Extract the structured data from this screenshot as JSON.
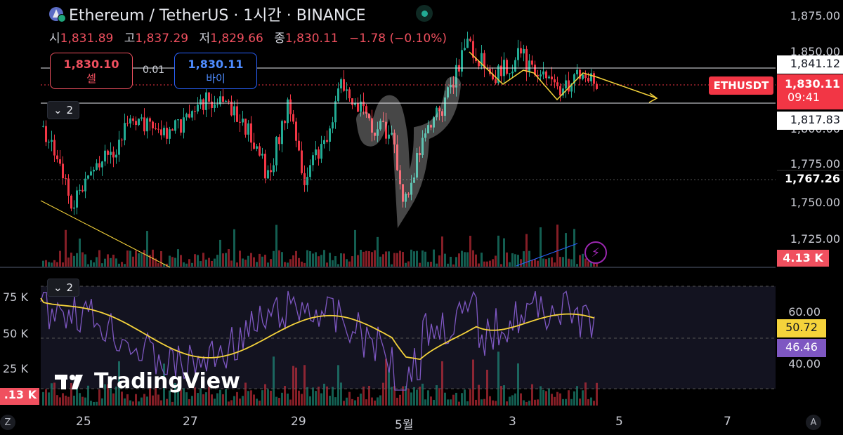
{
  "header": {
    "title": "Ethereum / TetherUS · 1시간 · BINANCE",
    "ohlc": [
      {
        "k": "시",
        "v": "1,831.89"
      },
      {
        "k": "고",
        "v": "1,837.29"
      },
      {
        "k": "저",
        "v": "1,829.66"
      },
      {
        "k": "종",
        "v": "1,830.11"
      }
    ],
    "change": "−1.78 (−0.10%)"
  },
  "trade": {
    "sell_price": "1,830.10",
    "sell_label": "셀",
    "buy_price": "1,830.11",
    "buy_label": "바이",
    "spread": "0.01"
  },
  "panes": {
    "main_collapse": "2",
    "indicator_collapse": "2"
  },
  "price_axis": {
    "ticks": [
      "1,875.00",
      "1,850.00",
      "1,800.00",
      "1,775.00",
      "1,750.00",
      "1,725.00"
    ],
    "line_upper": "1,841.12",
    "line_lower": "1,817.83",
    "symbol": "ETHUSDT",
    "last_price": "1,830.11",
    "countdown": "09:41",
    "crosshair": "1,767.26",
    "volume": "4.13 K"
  },
  "indicator_axis": {
    "left_ticks": [
      "75 K",
      "50 K",
      "25 K"
    ],
    "left_volume": ".13 K",
    "right_ticks": [
      "60.00",
      "40.00"
    ],
    "yellow_value": "50.72",
    "purple_value": "46.46"
  },
  "time_axis": {
    "labels": [
      "25",
      "27",
      "29",
      "5월",
      "3",
      "5",
      "7"
    ]
  },
  "branding": {
    "logo_text": "TradingView"
  },
  "corners": {
    "left": "Z",
    "right": "A"
  },
  "colors": {
    "up": "#22ab94",
    "down": "#f23645",
    "rsi": "#7e57c2",
    "ma": "#f5d33b",
    "trend": "#f5d33b"
  }
}
